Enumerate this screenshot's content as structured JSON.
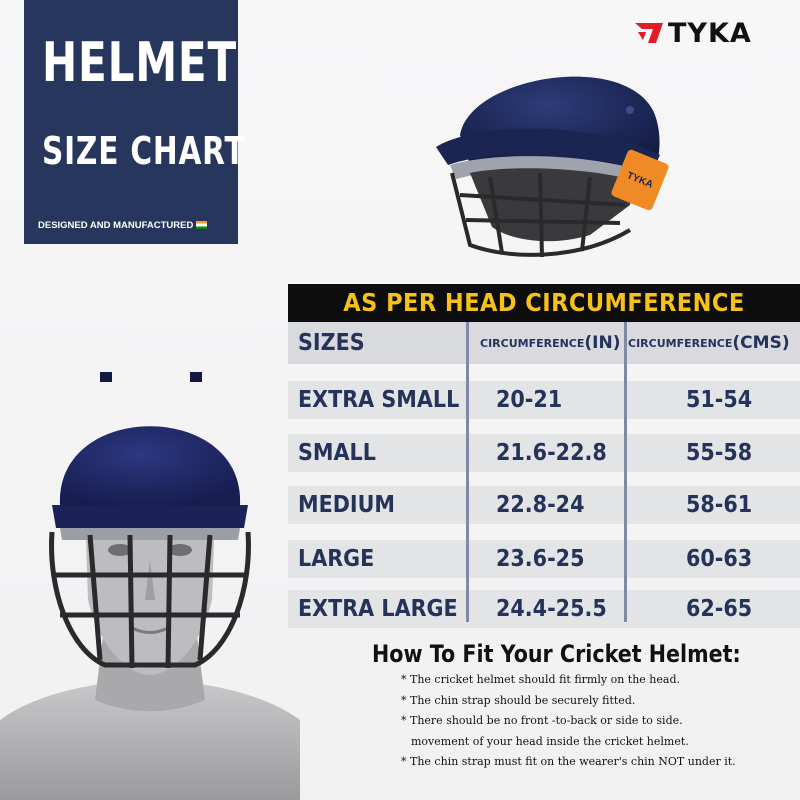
{
  "title_panel": {
    "line1": "HELMET",
    "line2": "SIZE CHART",
    "tagline": "DESIGNED AND MANUFACTURED"
  },
  "brand": {
    "name": "TYKA",
    "accent": "#e31b23"
  },
  "helmet_label": "TYKA",
  "table": {
    "banner": "AS PER HEAD CIRCUMFERENCE",
    "columns": {
      "sizes": "SIZES",
      "in_prefix": "CIRCUMFERENCE",
      "in_unit": "(IN)",
      "cm_prefix": "CIRCUMFERENCE",
      "cm_unit": "(CMS)"
    },
    "rows": [
      {
        "size": "EXTRA SMALL",
        "inches": "20-21",
        "cms": "51-54"
      },
      {
        "size": "SMALL",
        "inches": "21.6-22.8",
        "cms": "55-58"
      },
      {
        "size": "MEDIUM",
        "inches": "22.8-24",
        "cms": "58-61"
      },
      {
        "size": "LARGE",
        "inches": "23.6-25",
        "cms": "60-63"
      },
      {
        "size": "EXTRA LARGE",
        "inches": "24.4-25.5",
        "cms": "62-65"
      }
    ]
  },
  "guide": {
    "title": "How To Fit Your Cricket Helmet:",
    "items": [
      "* The cricket helmet should fit firmly on the head.",
      "* The chin strap should be securely fitted.",
      "* There should be no front -to-back or side to side.",
      "movement of your head inside the cricket helmet.",
      "* The chin strap must fit on the wearer's chin NOT under it."
    ]
  },
  "colors": {
    "navy_panel": "#27365c",
    "banner_bg": "#0d0d0d",
    "banner_text": "#f6c21a",
    "table_text": "#25335a",
    "helmet_navy": "#1f2a5c",
    "visor_orange": "#f08a24"
  }
}
